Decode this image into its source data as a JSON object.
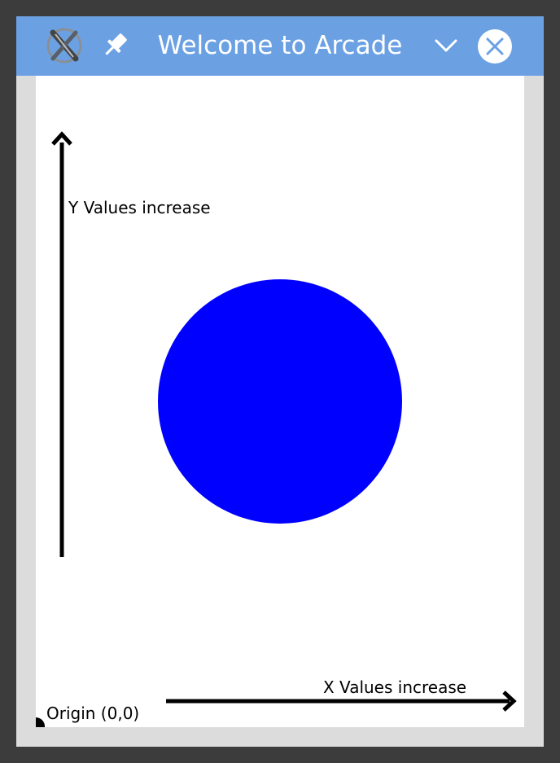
{
  "window": {
    "title": "Welcome to Arcade",
    "icons": {
      "app": "x-logo-icon",
      "pin": "pin-icon",
      "dropdown": "chevron-down-icon",
      "close": "close-icon"
    },
    "colors": {
      "titlebar": "#6ba1e3",
      "frame": "#dcdcdc",
      "canvas": "#ffffff",
      "circle": "#0000ff",
      "ink": "#000000"
    }
  },
  "canvas": {
    "labels": {
      "y_axis": "Y Values increase",
      "x_axis": "X Values increase",
      "origin": "Origin (0,0)"
    }
  }
}
